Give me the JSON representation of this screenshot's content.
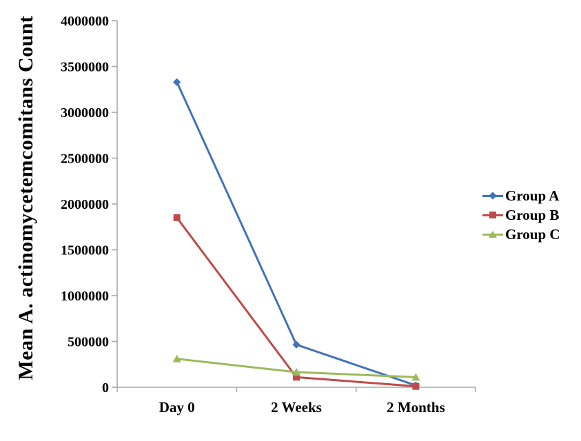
{
  "figure": {
    "background": "#ffffff"
  },
  "chart_data": {
    "type": "line",
    "title": "",
    "ylabel": "Mean A. actinomycetemcomitans Count",
    "xlabel": "",
    "categories": [
      "Day 0",
      "2 Weeks",
      "2 Months"
    ],
    "series": [
      {
        "name": "Group A",
        "marker": "diamond",
        "color": "#4273B8",
        "values": [
          3330000,
          465000,
          20000
        ]
      },
      {
        "name": "Group B",
        "marker": "square",
        "color": "#BE4B48",
        "values": [
          1850000,
          110000,
          10000
        ]
      },
      {
        "name": "Group C",
        "marker": "triangle",
        "color": "#9BBB59",
        "values": [
          310000,
          165000,
          110000
        ]
      }
    ],
    "ylim": [
      0,
      4000000
    ],
    "ytick_step": 500000,
    "ytick_labels": [
      "4000000",
      "3500000",
      "3000000",
      "2500000",
      "2000000",
      "1500000",
      "1000000",
      "500000",
      "0"
    ],
    "grid": false,
    "legend_position": "right",
    "axis_color": "#A8A8A8",
    "text_color": "#000000"
  }
}
